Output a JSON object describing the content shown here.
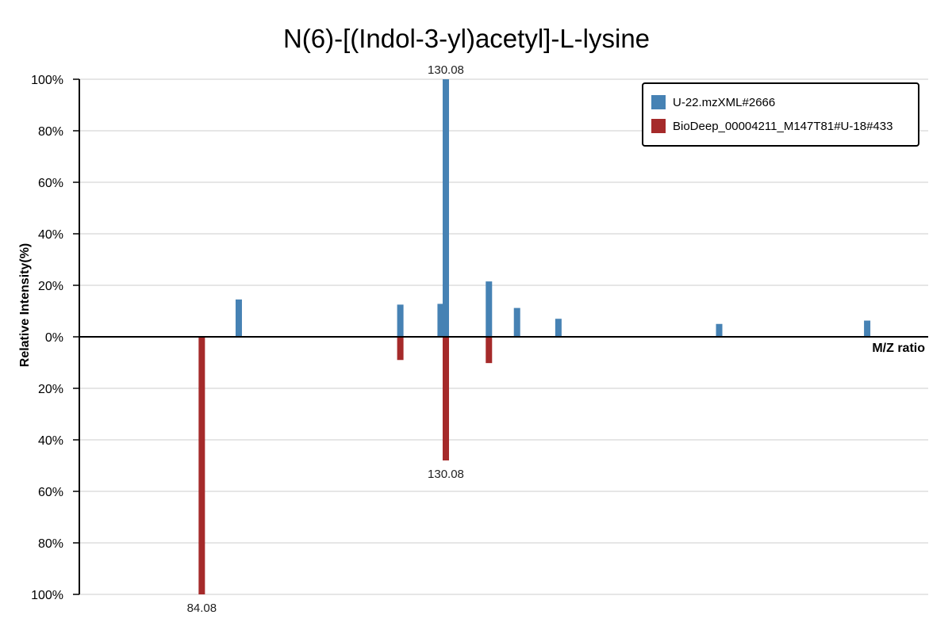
{
  "chart_data": {
    "type": "bar",
    "title": "N(6)-[(Indol-3-yl)acetyl]-L-lysine",
    "xlabel": "M/Z ratio",
    "ylabel": "Relative Intensity(%)",
    "ylim_top": [
      0,
      100
    ],
    "ylim_bottom": [
      0,
      100
    ],
    "xlim": [
      61,
      221
    ],
    "y_ticks_top": [
      "0%",
      "20%",
      "40%",
      "60%",
      "80%",
      "100%"
    ],
    "y_ticks_bottom": [
      "20%",
      "40%",
      "60%",
      "80%",
      "100%"
    ],
    "grid": true,
    "legend": "top-right",
    "series": [
      {
        "name": "U-22.mzXML#2666",
        "color": "#4682B4",
        "direction": "up",
        "mz": [
          91.05,
          121.5,
          130.08,
          129.1,
          138.2,
          143.5,
          151.3,
          181.6,
          209.5
        ],
        "values": [
          14.5,
          12.5,
          100,
          12.8,
          21.5,
          11.2,
          7.0,
          5.0,
          6.3
        ]
      },
      {
        "name": "BioDeep_00004211_M147T81#U-18#433",
        "color": "#A52A2A",
        "direction": "down",
        "mz": [
          84.08,
          121.5,
          130.08,
          138.2
        ],
        "values": [
          100,
          9.0,
          48,
          10.2
        ]
      }
    ],
    "peak_labels": [
      {
        "text": "130.08",
        "series": 0,
        "mz": 130.08
      },
      {
        "text": "130.08",
        "series": 1,
        "mz": 130.08
      },
      {
        "text": "84.08",
        "series": 1,
        "mz": 84.08
      }
    ]
  }
}
